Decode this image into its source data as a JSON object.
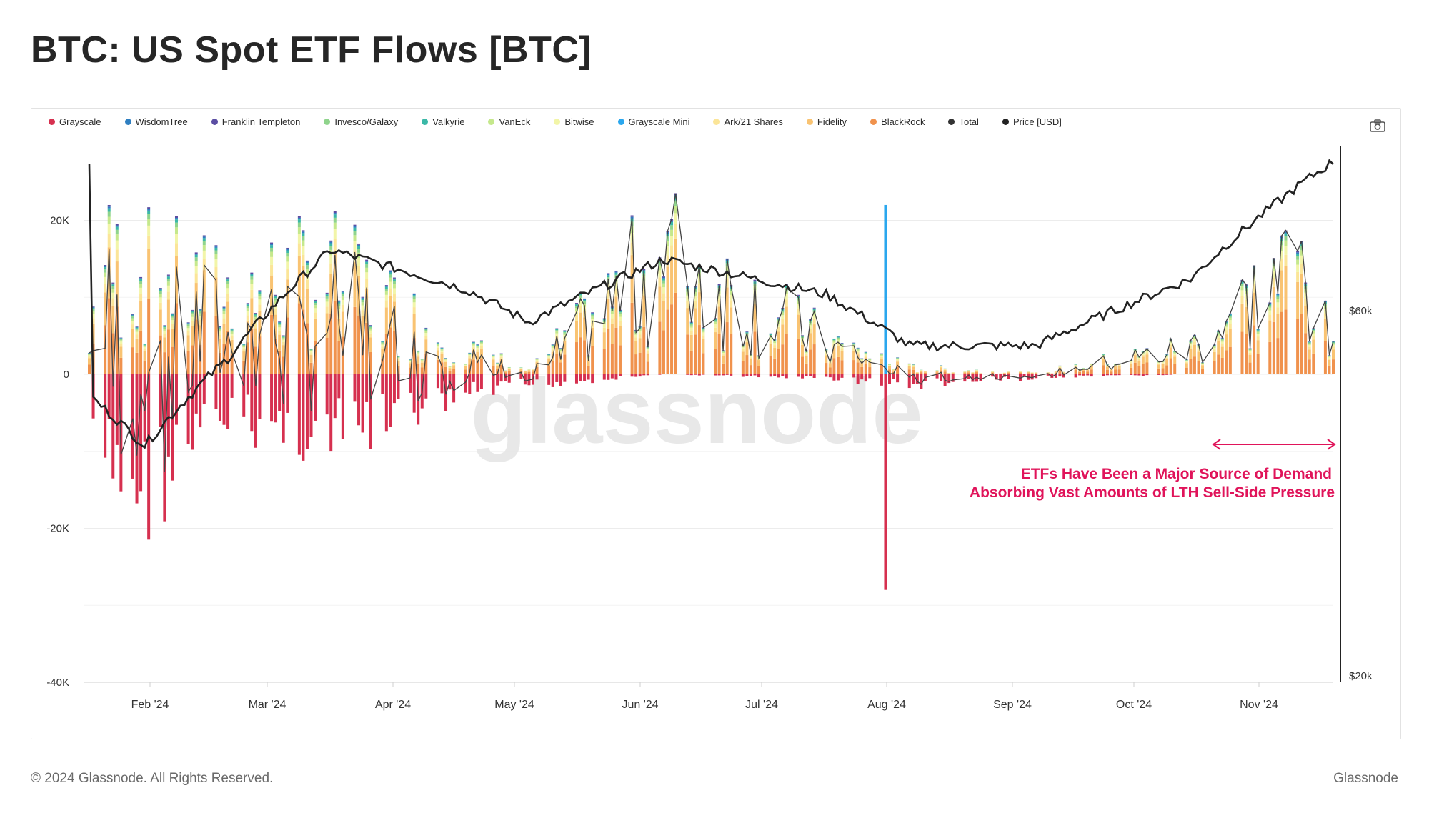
{
  "title": "BTC: US Spot ETF Flows [BTC]",
  "watermark": "glassnode",
  "footer": {
    "copyright": "© 2024 Glassnode. All Rights Reserved.",
    "brand": "Glassnode"
  },
  "legend": [
    {
      "name": "Grayscale",
      "color": "#d6304f"
    },
    {
      "name": "WisdomTree",
      "color": "#2f7fc1"
    },
    {
      "name": "Franklin Templeton",
      "color": "#5b4ea3"
    },
    {
      "name": "Invesco/Galaxy",
      "color": "#8fd48c"
    },
    {
      "name": "Valkyrie",
      "color": "#3bb8a7"
    },
    {
      "name": "VanEck",
      "color": "#c5e88c"
    },
    {
      "name": "Bitwise",
      "color": "#f2f5a8"
    },
    {
      "name": "Grayscale Mini",
      "color": "#2aa7ee"
    },
    {
      "name": "Ark/21 Shares",
      "color": "#fbe598"
    },
    {
      "name": "Fidelity",
      "color": "#f9c372"
    },
    {
      "name": "BlackRock",
      "color": "#f0924d"
    },
    {
      "name": "Total",
      "color": "#333333"
    },
    {
      "name": "Price [USD]",
      "color": "#222222"
    }
  ],
  "chart_data": {
    "type": "bar",
    "title": "BTC: US Spot ETF Flows [BTC]",
    "x_axis": {
      "ticks": [
        "Feb '24",
        "Mar '24",
        "Apr '24",
        "May '24",
        "Jun '24",
        "Jul '24",
        "Aug '24",
        "Sep '24",
        "Oct '24",
        "Nov '24"
      ],
      "range": [
        "2024-01-11",
        "2024-11-20"
      ]
    },
    "y_axis_left": {
      "ticks": [
        "20K",
        "0",
        "-20K",
        "-40K"
      ],
      "range": [
        -40000,
        30000
      ]
    },
    "y_axis_right": {
      "ticks": [
        "$60k",
        "$20k"
      ],
      "scale": "log"
    },
    "grid": true,
    "legend_position": "top",
    "annotation": {
      "text_line1": "ETFs Have Been a Major Source of Demand",
      "text_line2": "Absorbing Vast Amounts of LTH Sell-Side Pressure",
      "color": "#e0145a"
    },
    "highlight_day": {
      "date": "2024-07-30",
      "grayscale_mini_inflow": 22000,
      "grayscale_outflow": -28000
    },
    "monthly_samples": [
      {
        "date": "2024-01-12",
        "grayscale": -12000,
        "inflows": 17000,
        "total": 5000,
        "price": 46000
      },
      {
        "date": "2024-01-25",
        "grayscale": -16000,
        "inflows": 15000,
        "total": -1000,
        "price": 40000
      },
      {
        "date": "2024-02-15",
        "grayscale": -6000,
        "inflows": 12000,
        "total": 6000,
        "price": 52000
      },
      {
        "date": "2024-03-12",
        "grayscale": -9000,
        "inflows": 15000,
        "total": 6000,
        "price": 72000
      },
      {
        "date": "2024-04-15",
        "grayscale": -3000,
        "inflows": 4000,
        "total": 1000,
        "price": 64000
      },
      {
        "date": "2024-05-01",
        "grayscale": -1500,
        "inflows": 500,
        "total": -1000,
        "price": 58000
      },
      {
        "date": "2024-06-04",
        "grayscale": 0,
        "inflows": 18000,
        "total": 18000,
        "price": 70000
      },
      {
        "date": "2024-07-15",
        "grayscale": -500,
        "inflows": 5000,
        "total": 4500,
        "price": 63000
      },
      {
        "date": "2024-08-05",
        "grayscale": -1500,
        "inflows": 1000,
        "total": -500,
        "price": 54000
      },
      {
        "date": "2024-09-06",
        "grayscale": -500,
        "inflows": 200,
        "total": -300,
        "price": 54000
      },
      {
        "date": "2024-10-15",
        "grayscale": 0,
        "inflows": 4000,
        "total": 4000,
        "price": 66000
      },
      {
        "date": "2024-11-12",
        "grayscale": 0,
        "inflows": 17000,
        "total": 17000,
        "price": 88000
      },
      {
        "date": "2024-11-20",
        "grayscale": 0,
        "inflows": 3000,
        "total": 3000,
        "price": 94000
      }
    ]
  }
}
